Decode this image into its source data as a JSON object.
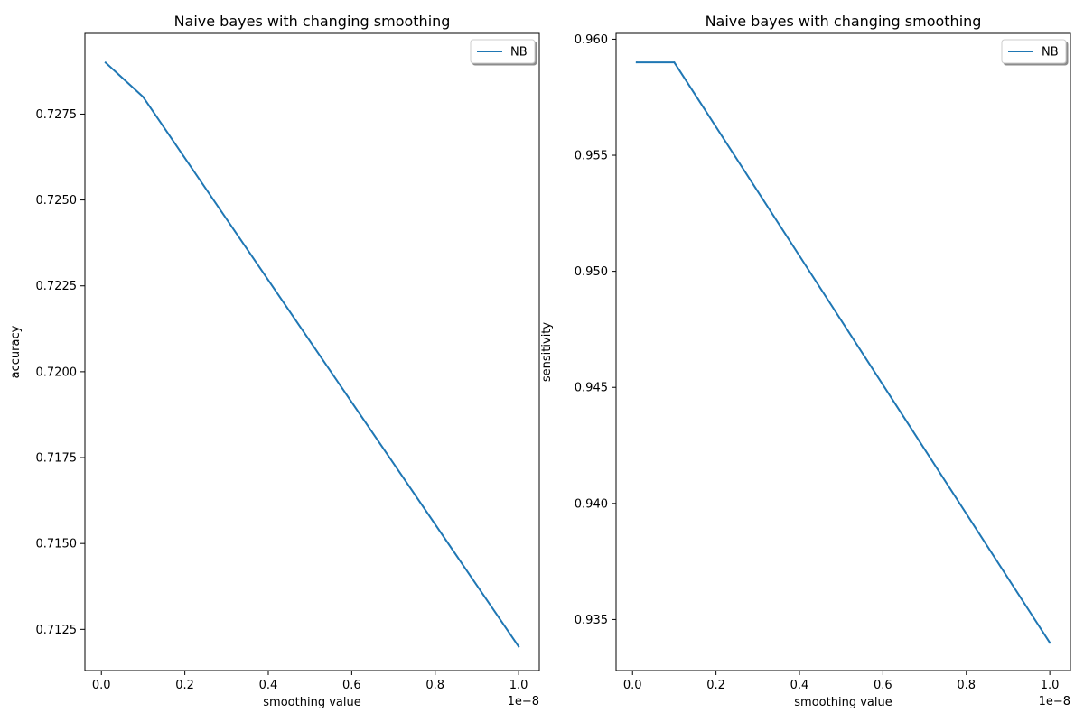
{
  "chart_data": [
    {
      "type": "line",
      "title": "Naive bayes with changing smoothing",
      "xlabel": "smoothing value",
      "ylabel": "accuracy",
      "x_offset_label": "1e−8",
      "xlim": [
        -0.0395,
        1.0495
      ],
      "ylim": [
        0.7113,
        0.72985
      ],
      "xticks": [
        0.0,
        0.2,
        0.4,
        0.6,
        0.8,
        1.0
      ],
      "xtick_labels": [
        "0.0",
        "0.2",
        "0.4",
        "0.6",
        "0.8",
        "1.0"
      ],
      "yticks": [
        0.7125,
        0.715,
        0.7175,
        0.72,
        0.7225,
        0.725,
        0.7275
      ],
      "ytick_labels": [
        "0.7125",
        "0.7150",
        "0.7175",
        "0.7200",
        "0.7225",
        "0.7250",
        "0.7275"
      ],
      "grid": false,
      "legend_position": "top-right",
      "color": "#1f77b4",
      "series": [
        {
          "name": "NB",
          "x": [
            0.01,
            0.1,
            1.0
          ],
          "y": [
            0.729,
            0.728,
            0.712
          ]
        }
      ]
    },
    {
      "type": "line",
      "title": "Naive bayes with changing smoothing",
      "xlabel": "smoothing value",
      "ylabel": "sensitivity",
      "x_offset_label": "1e−8",
      "xlim": [
        -0.0395,
        1.0495
      ],
      "ylim": [
        0.9328,
        0.96025
      ],
      "xticks": [
        0.0,
        0.2,
        0.4,
        0.6,
        0.8,
        1.0
      ],
      "xtick_labels": [
        "0.0",
        "0.2",
        "0.4",
        "0.6",
        "0.8",
        "1.0"
      ],
      "yticks": [
        0.935,
        0.94,
        0.945,
        0.95,
        0.955,
        0.96
      ],
      "ytick_labels": [
        "0.935",
        "0.940",
        "0.945",
        "0.950",
        "0.955",
        "0.960"
      ],
      "grid": false,
      "legend_position": "top-right",
      "color": "#1f77b4",
      "series": [
        {
          "name": "NB",
          "x": [
            0.01,
            0.1,
            1.0
          ],
          "y": [
            0.959,
            0.959,
            0.934
          ]
        }
      ]
    }
  ]
}
